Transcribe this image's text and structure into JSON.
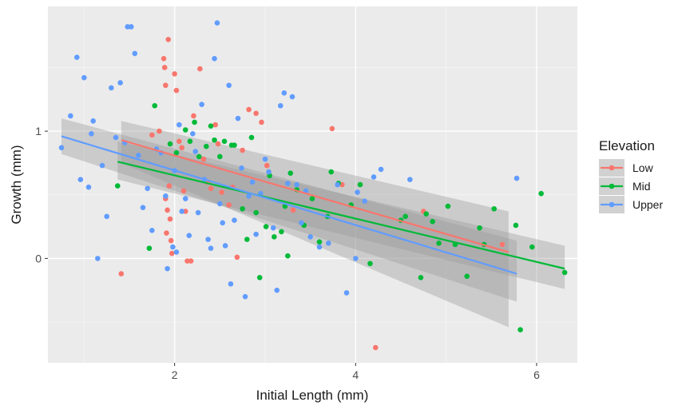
{
  "chart_data": {
    "type": "scatter",
    "xlabel": "Initial Length (mm)",
    "ylabel": "Growth (mm)",
    "xlim": [
      0.6,
      6.45
    ],
    "ylim": [
      -0.82,
      1.98
    ],
    "xticks": [
      2,
      4,
      6
    ],
    "yticks": [
      0,
      1
    ],
    "xminor": [
      1,
      3,
      5
    ],
    "yminor": [
      -0.5,
      0.5,
      1.5
    ],
    "grid": true,
    "background": "#ebebeb",
    "legend": {
      "title": "Elevation",
      "position": "right",
      "entries": [
        "Low",
        "Mid",
        "Upper"
      ]
    },
    "series": [
      {
        "name": "Low",
        "color": "#f8766d",
        "points": [
          [
            1.41,
            -0.12
          ],
          [
            1.75,
            0.97
          ],
          [
            1.83,
            1.0
          ],
          [
            1.88,
            1.57
          ],
          [
            1.89,
            1.5
          ],
          [
            1.9,
            1.36
          ],
          [
            1.93,
            1.72
          ],
          [
            1.94,
            0.57
          ],
          [
            1.9,
            0.47
          ],
          [
            1.92,
            0.38
          ],
          [
            1.95,
            0.31
          ],
          [
            1.91,
            0.2
          ],
          [
            1.96,
            0.14
          ],
          [
            1.97,
            0.04
          ],
          [
            2.0,
            1.45
          ],
          [
            2.02,
            1.32
          ],
          [
            2.05,
            0.92
          ],
          [
            2.08,
            0.87
          ],
          [
            2.1,
            0.53
          ],
          [
            2.12,
            0.37
          ],
          [
            2.14,
            -0.02
          ],
          [
            2.18,
            -0.02
          ],
          [
            2.21,
            1.12
          ],
          [
            2.28,
            1.49
          ],
          [
            2.32,
            0.78
          ],
          [
            2.36,
            0.6
          ],
          [
            2.4,
            0.55
          ],
          [
            2.45,
            1.05
          ],
          [
            2.48,
            0.9
          ],
          [
            2.52,
            0.52
          ],
          [
            2.6,
            0.42
          ],
          [
            2.64,
            0.56
          ],
          [
            2.69,
            0.01
          ],
          [
            2.75,
            0.85
          ],
          [
            2.82,
            1.17
          ],
          [
            2.9,
            1.14
          ],
          [
            2.96,
            1.07
          ],
          [
            3.02,
            0.73
          ],
          [
            3.31,
            0.38
          ],
          [
            3.74,
            1.02
          ],
          [
            3.85,
            0.58
          ],
          [
            4.22,
            -0.7
          ],
          [
            4.75,
            0.37
          ],
          [
            5.62,
            0.11
          ]
        ]
      },
      {
        "name": "Mid",
        "color": "#00ba38",
        "points": [
          [
            1.37,
            0.57
          ],
          [
            1.72,
            0.08
          ],
          [
            1.78,
            1.2
          ],
          [
            1.95,
            0.9
          ],
          [
            2.02,
            0.83
          ],
          [
            2.12,
            1.01
          ],
          [
            2.17,
            0.92
          ],
          [
            2.22,
            1.07
          ],
          [
            2.27,
            0.8
          ],
          [
            2.35,
            0.88
          ],
          [
            2.4,
            1.04
          ],
          [
            2.44,
            0.93
          ],
          [
            2.5,
            0.8
          ],
          [
            2.55,
            0.92
          ],
          [
            2.63,
            0.89
          ],
          [
            2.66,
            0.89
          ],
          [
            2.75,
            0.39
          ],
          [
            2.8,
            0.15
          ],
          [
            2.85,
            0.95
          ],
          [
            2.9,
            0.36
          ],
          [
            2.94,
            -0.15
          ],
          [
            3.01,
            0.25
          ],
          [
            3.05,
            0.65
          ],
          [
            3.1,
            0.17
          ],
          [
            3.18,
            0.21
          ],
          [
            3.22,
            0.41
          ],
          [
            3.25,
            0.02
          ],
          [
            3.28,
            0.67
          ],
          [
            3.35,
            0.54
          ],
          [
            3.43,
            0.26
          ],
          [
            3.52,
            0.47
          ],
          [
            3.6,
            0.13
          ],
          [
            3.69,
            0.33
          ],
          [
            3.73,
            0.68
          ],
          [
            3.81,
            0.59
          ],
          [
            3.95,
            0.42
          ],
          [
            4.05,
            0.58
          ],
          [
            4.16,
            -0.04
          ],
          [
            4.5,
            0.3
          ],
          [
            4.55,
            0.33
          ],
          [
            4.72,
            -0.15
          ],
          [
            4.78,
            0.35
          ],
          [
            4.85,
            0.29
          ],
          [
            4.92,
            0.12
          ],
          [
            5.02,
            0.41
          ],
          [
            5.1,
            0.11
          ],
          [
            5.23,
            -0.14
          ],
          [
            5.37,
            0.24
          ],
          [
            5.42,
            0.11
          ],
          [
            5.53,
            0.39
          ],
          [
            5.77,
            0.26
          ],
          [
            5.82,
            -0.56
          ],
          [
            5.95,
            0.09
          ],
          [
            6.05,
            0.51
          ],
          [
            6.31,
            -0.11
          ]
        ]
      },
      {
        "name": "Upper",
        "color": "#619cff",
        "points": [
          [
            0.75,
            0.87
          ],
          [
            0.85,
            1.12
          ],
          [
            0.92,
            1.58
          ],
          [
            0.96,
            0.62
          ],
          [
            1.05,
            0.56
          ],
          [
            1.1,
            1.08
          ],
          [
            1.15,
            0.0
          ],
          [
            1.2,
            0.73
          ],
          [
            1.25,
            0.33
          ],
          [
            1.0,
            1.42
          ],
          [
            1.08,
            0.98
          ],
          [
            1.3,
            1.34
          ],
          [
            1.35,
            0.95
          ],
          [
            1.4,
            1.38
          ],
          [
            1.45,
            0.91
          ],
          [
            1.48,
            1.82
          ],
          [
            1.52,
            1.82
          ],
          [
            1.56,
            1.61
          ],
          [
            1.6,
            0.81
          ],
          [
            1.65,
            0.4
          ],
          [
            1.7,
            0.55
          ],
          [
            1.75,
            0.22
          ],
          [
            1.8,
            0.86
          ],
          [
            1.85,
            0.83
          ],
          [
            1.9,
            0.49
          ],
          [
            1.92,
            -0.08
          ],
          [
            1.98,
            0.09
          ],
          [
            2.0,
            0.69
          ],
          [
            2.02,
            0.05
          ],
          [
            2.05,
            1.05
          ],
          [
            2.08,
            0.37
          ],
          [
            2.12,
            0.47
          ],
          [
            2.16,
            0.18
          ],
          [
            2.2,
            0.98
          ],
          [
            2.23,
            0.84
          ],
          [
            2.26,
            0.36
          ],
          [
            2.3,
            1.21
          ],
          [
            2.33,
            0.62
          ],
          [
            2.37,
            0.15
          ],
          [
            2.4,
            0.08
          ],
          [
            2.44,
            1.57
          ],
          [
            2.47,
            1.85
          ],
          [
            2.5,
            0.43
          ],
          [
            2.53,
            0.28
          ],
          [
            2.56,
            0.1
          ],
          [
            2.6,
            1.36
          ],
          [
            2.62,
            -0.2
          ],
          [
            2.66,
            0.3
          ],
          [
            2.7,
            1.1
          ],
          [
            2.74,
            0.71
          ],
          [
            2.78,
            -0.3
          ],
          [
            2.82,
            0.49
          ],
          [
            2.86,
            0.6
          ],
          [
            2.9,
            0.19
          ],
          [
            2.95,
            0.51
          ],
          [
            3.0,
            0.78
          ],
          [
            3.04,
            0.68
          ],
          [
            3.09,
            0.24
          ],
          [
            3.13,
            -0.25
          ],
          [
            3.17,
            1.2
          ],
          [
            3.21,
            1.3
          ],
          [
            3.25,
            0.59
          ],
          [
            3.3,
            1.27
          ],
          [
            3.35,
            0.58
          ],
          [
            3.4,
            0.28
          ],
          [
            3.45,
            0.53
          ],
          [
            3.5,
            0.17
          ],
          [
            3.6,
            0.09
          ],
          [
            3.7,
            0.12
          ],
          [
            3.8,
            0.58
          ],
          [
            3.9,
            -0.27
          ],
          [
            4.0,
            0.0
          ],
          [
            4.02,
            0.52
          ],
          [
            4.1,
            0.45
          ],
          [
            4.2,
            0.64
          ],
          [
            4.28,
            0.7
          ],
          [
            4.6,
            0.62
          ],
          [
            5.78,
            0.63
          ]
        ]
      }
    ],
    "trend_lines": [
      {
        "name": "Low",
        "color": "#f8766d",
        "x": [
          1.41,
          5.69
        ],
        "y": [
          0.93,
          0.05
        ],
        "ci_upper": [
          1.08,
          0.37
        ],
        "ci_lower": [
          0.75,
          -0.54
        ]
      },
      {
        "name": "Mid",
        "color": "#00ba38",
        "x": [
          1.37,
          6.31
        ],
        "y": [
          0.76,
          -0.08
        ],
        "ci_upper": [
          0.92,
          0.1
        ],
        "ci_lower": [
          0.62,
          -0.24
        ]
      },
      {
        "name": "Upper",
        "color": "#619cff",
        "x": [
          0.75,
          5.78
        ],
        "y": [
          0.96,
          -0.12
        ],
        "ci_upper": [
          1.1,
          0.14
        ],
        "ci_lower": [
          0.82,
          -0.34
        ]
      }
    ],
    "ci_fill_color": "#999999"
  }
}
